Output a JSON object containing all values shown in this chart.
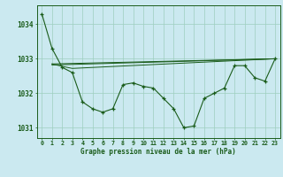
{
  "title": "Graphe pression niveau de la mer (hPa)",
  "bg_color": "#cbe9f0",
  "line_color": "#1a5c1a",
  "grid_color": "#9ecfbf",
  "xlim": [
    -0.5,
    23.5
  ],
  "ylim": [
    1030.7,
    1034.55
  ],
  "yticks": [
    1031,
    1032,
    1033,
    1034
  ],
  "xticks": [
    0,
    1,
    2,
    3,
    4,
    5,
    6,
    7,
    8,
    9,
    10,
    11,
    12,
    13,
    14,
    15,
    16,
    17,
    18,
    19,
    20,
    21,
    22,
    23
  ],
  "series_main": {
    "x": [
      0,
      1,
      2,
      3,
      4,
      5,
      6,
      7,
      8,
      9,
      10,
      11,
      12,
      13,
      14,
      15,
      16,
      17,
      18,
      19,
      20,
      21,
      22,
      23
    ],
    "y": [
      1034.3,
      1033.3,
      1032.75,
      1032.6,
      1031.75,
      1031.55,
      1031.45,
      1031.55,
      1032.25,
      1032.3,
      1032.2,
      1032.15,
      1031.85,
      1031.55,
      1031.0,
      1031.05,
      1031.85,
      1032.0,
      1032.15,
      1032.8,
      1032.8,
      1032.45,
      1032.35,
      1033.0
    ]
  },
  "series_flat1": {
    "x": [
      1,
      23
    ],
    "y": [
      1032.85,
      1033.0
    ]
  },
  "series_flat2": {
    "x": [
      1,
      2,
      3,
      23
    ],
    "y": [
      1032.85,
      1032.78,
      1032.72,
      1033.0
    ]
  },
  "series_flat3": {
    "x": [
      1,
      23
    ],
    "y": [
      1032.82,
      1033.0
    ]
  }
}
